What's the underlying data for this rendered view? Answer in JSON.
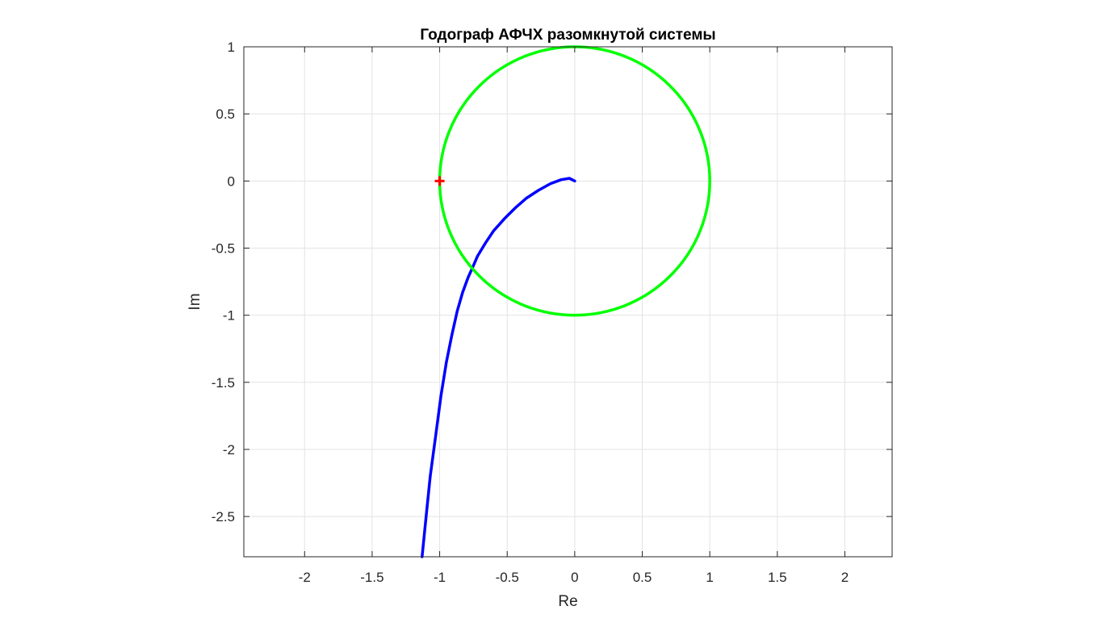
{
  "chart_data": {
    "type": "line",
    "title": "Годограф АФЧХ разомкнутой системы",
    "xlabel": "Re",
    "ylabel": "Im",
    "xlim": [
      -2.45,
      2.35
    ],
    "ylim": [
      -2.8,
      1
    ],
    "xticks": [
      -2,
      -1.5,
      -1,
      -0.5,
      0,
      0.5,
      1,
      1.5,
      2
    ],
    "xtick_labels": [
      "-2",
      "-1.5",
      "-1",
      "-0.5",
      "0",
      "0.5",
      "1",
      "1.5",
      "2"
    ],
    "yticks": [
      1,
      0.5,
      0,
      -0.5,
      -1,
      -1.5,
      -2,
      -2.5
    ],
    "ytick_labels": [
      "1",
      "0.5",
      "0",
      "-0.5",
      "-1",
      "-1.5",
      "-2",
      "-2.5"
    ],
    "grid": true,
    "series": [
      {
        "kind": "hodograph",
        "color": "#0000ff",
        "x": [
          -1.13,
          -1.1,
          -1.07,
          -1.03,
          -0.99,
          -0.95,
          -0.91,
          -0.87,
          -0.83,
          -0.79,
          -0.75,
          -0.72,
          -0.66,
          -0.6,
          -0.52,
          -0.44,
          -0.36,
          -0.27,
          -0.18,
          -0.1,
          -0.04,
          0.0
        ],
        "y": [
          -2.8,
          -2.5,
          -2.2,
          -1.9,
          -1.6,
          -1.35,
          -1.15,
          -0.97,
          -0.83,
          -0.72,
          -0.63,
          -0.56,
          -0.46,
          -0.37,
          -0.28,
          -0.2,
          -0.13,
          -0.07,
          -0.02,
          0.01,
          0.02,
          0.0
        ]
      },
      {
        "kind": "unit-circle",
        "color": "#00ff00",
        "center": [
          0,
          0
        ],
        "radius": 1
      },
      {
        "kind": "critical-point",
        "color": "#ff0000",
        "marker": "plus",
        "x": [
          -1
        ],
        "y": [
          0
        ]
      }
    ]
  }
}
